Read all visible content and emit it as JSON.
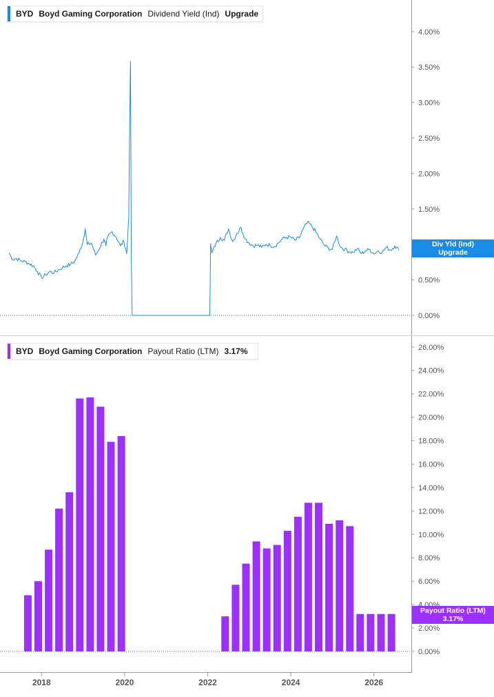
{
  "top_legend": {
    "ticker": "BYD",
    "company": "Boyd Gaming Corporation",
    "metric": "Dividend Yield (Ind)",
    "value": "Upgrade",
    "color": "#1a8be4"
  },
  "bottom_legend": {
    "ticker": "BYD",
    "company": "Boyd Gaming Corporation",
    "metric": "Payout Ratio (LTM)",
    "value": "3.17%",
    "color": "#9b30ff"
  },
  "top_tag": {
    "line1": "Div Yld (Ind)",
    "line2": "Upgrade",
    "color": "#1a8be4"
  },
  "bottom_tag": {
    "line1": "Payout Ratio (LTM)",
    "line2": "3.17%",
    "color": "#9b30ff"
  },
  "chart_data": [
    {
      "type": "line",
      "name": "top-dividend-yield",
      "x_domain": [
        2017.0,
        2026.9
      ],
      "ylim": [
        0,
        4.0
      ],
      "y_ticks": [
        "0.00%",
        "0.50%",
        "1.00%",
        "1.50%",
        "2.00%",
        "2.50%",
        "3.00%",
        "3.50%",
        "4.00%"
      ],
      "x": [
        2017.22,
        2017.3,
        2017.4,
        2017.5,
        2017.6,
        2017.7,
        2017.8,
        2017.9,
        2018.0,
        2018.1,
        2018.2,
        2018.3,
        2018.4,
        2018.5,
        2018.6,
        2018.7,
        2018.8,
        2018.9,
        2019.0,
        2019.05,
        2019.1,
        2019.2,
        2019.3,
        2019.4,
        2019.5,
        2019.55,
        2019.6,
        2019.7,
        2019.8,
        2019.9,
        2019.98,
        2020.05,
        2020.1,
        2020.12,
        2020.14,
        2020.16,
        2020.18,
        2020.2,
        2020.22,
        2020.4,
        2020.6,
        2020.8,
        2021.0,
        2021.2,
        2021.4,
        2021.6,
        2021.8,
        2022.0,
        2022.05,
        2022.07,
        2022.1,
        2022.2,
        2022.3,
        2022.4,
        2022.5,
        2022.6,
        2022.7,
        2022.8,
        2022.9,
        2023.0,
        2023.1,
        2023.2,
        2023.3,
        2023.4,
        2023.5,
        2023.6,
        2023.7,
        2023.8,
        2023.9,
        2024.0,
        2024.1,
        2024.2,
        2024.3,
        2024.4,
        2024.5,
        2024.6,
        2024.7,
        2024.8,
        2024.9,
        2025.0,
        2025.1,
        2025.2,
        2025.3,
        2025.4,
        2025.5,
        2025.6,
        2025.7,
        2025.8,
        2025.9,
        2026.0,
        2026.1,
        2026.2,
        2026.3,
        2026.4,
        2026.5,
        2026.6
      ],
      "y": [
        0.88,
        0.79,
        0.8,
        0.77,
        0.76,
        0.73,
        0.7,
        0.62,
        0.53,
        0.57,
        0.62,
        0.6,
        0.64,
        0.67,
        0.7,
        0.72,
        0.76,
        0.88,
        1.05,
        1.22,
        1.0,
        1.02,
        0.85,
        0.95,
        1.08,
        0.98,
        1.12,
        1.18,
        1.1,
        0.98,
        1.05,
        0.87,
        1.38,
        2.6,
        3.58,
        0.85,
        0.0,
        0.0,
        0.0,
        0.0,
        0.0,
        0.0,
        0.0,
        0.0,
        0.0,
        0.0,
        0.0,
        0.0,
        0.0,
        1.01,
        0.88,
        1.02,
        1.1,
        1.06,
        1.22,
        1.04,
        1.15,
        1.24,
        1.08,
        1.02,
        0.98,
        0.99,
        0.96,
        1.0,
        0.99,
        0.97,
        1.02,
        1.08,
        1.1,
        1.1,
        1.06,
        1.09,
        1.22,
        1.31,
        1.26,
        1.18,
        1.08,
        0.99,
        0.95,
        0.93,
        1.12,
        0.96,
        0.93,
        0.9,
        0.89,
        0.94,
        0.87,
        0.91,
        0.93,
        0.87,
        0.91,
        0.89,
        0.96,
        0.92,
        0.98,
        0.92
      ]
    },
    {
      "type": "bar",
      "name": "bottom-payout-ratio",
      "ylim": [
        0,
        26
      ],
      "y_ticks": [
        "0.00%",
        "2.00%",
        "4.00%",
        "6.00%",
        "8.00%",
        "10.00%",
        "12.00%",
        "14.00%",
        "16.00%",
        "18.00%",
        "20.00%",
        "22.00%",
        "24.00%",
        "26.00%"
      ],
      "x_ticks": [
        {
          "value": 2018,
          "label": "2018"
        },
        {
          "value": 2020,
          "label": "2020"
        },
        {
          "value": 2022,
          "label": "2022"
        },
        {
          "value": 2024,
          "label": "2024"
        },
        {
          "value": 2026,
          "label": "2026"
        }
      ],
      "x": [
        2017.67,
        2017.92,
        2018.17,
        2018.42,
        2018.67,
        2018.92,
        2019.17,
        2019.42,
        2019.67,
        2019.92,
        2022.42,
        2022.67,
        2022.92,
        2023.17,
        2023.42,
        2023.67,
        2023.92,
        2024.17,
        2024.42,
        2024.67,
        2024.92,
        2025.17,
        2025.42,
        2025.67,
        2025.92,
        2026.17,
        2026.42
      ],
      "values": [
        4.8,
        6.0,
        8.7,
        12.2,
        13.6,
        21.6,
        21.7,
        20.9,
        17.9,
        18.4,
        3.0,
        5.7,
        7.5,
        9.4,
        8.8,
        9.1,
        10.3,
        11.5,
        12.7,
        12.7,
        10.9,
        11.2,
        10.7,
        3.2,
        3.2,
        3.2,
        3.2
      ]
    }
  ]
}
